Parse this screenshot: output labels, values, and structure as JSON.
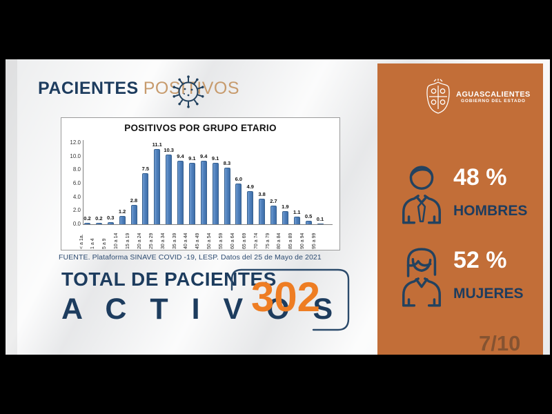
{
  "header": {
    "title_primary": "PACIENTES",
    "title_secondary": "POSITIVOS"
  },
  "chart_data": {
    "type": "bar",
    "title": "POSITIVOS POR GRUPO ETARIO",
    "categories": [
      "< a 1a.",
      "1 a 4",
      "5 a 9",
      "10 a 14",
      "15 a 19",
      "20 a 24",
      "25 a 29",
      "30 a 34",
      "35 a 39",
      "40 a 44",
      "45 a 49",
      "50 a 54",
      "55 a 59",
      "60 a 64",
      "65 a 69",
      "70 a 74",
      "75 a 79",
      "80 a 84",
      "85 a 89",
      "90 a 94",
      "95 a 99"
    ],
    "values": [
      0.2,
      0.2,
      0.3,
      1.2,
      2.8,
      7.5,
      11.1,
      10.3,
      9.4,
      9.1,
      9.4,
      9.1,
      8.3,
      6.0,
      4.9,
      3.8,
      2.7,
      1.9,
      1.1,
      0.5,
      0.1
    ],
    "yticks": [
      "0.0",
      "2.0",
      "4.0",
      "6.0",
      "8.0",
      "10.0",
      "12.0"
    ],
    "ylim": [
      0,
      12
    ],
    "xlabel": "",
    "ylabel": "",
    "grid": false,
    "legend": "none",
    "value_labels": true,
    "bar_color": "#4f81bd"
  },
  "chart_source": "FUENTE. Plataforma SINAVE COVID -19, LESP. Datos del 25 de Mayo de 2021",
  "total": {
    "line1": "TOTAL DE PACIENTES",
    "line2": "A C T I V O S",
    "value": "302"
  },
  "sidebar": {
    "logo_title": "AGUASCALIENTES",
    "logo_subtitle": "GOBIERNO DEL ESTADO",
    "stats": [
      {
        "icon": "man-icon",
        "percent": "48 %",
        "label": "HOMBRES"
      },
      {
        "icon": "woman-icon",
        "percent": "52 %",
        "label": "MUJERES"
      }
    ],
    "page_indicator": "7/10"
  },
  "colors": {
    "navy": "#1d3c5e",
    "tan": "#c79b6d",
    "panel_orange": "#c26e38",
    "accent_orange": "#ee7d23",
    "bar_blue": "#4f81bd"
  }
}
